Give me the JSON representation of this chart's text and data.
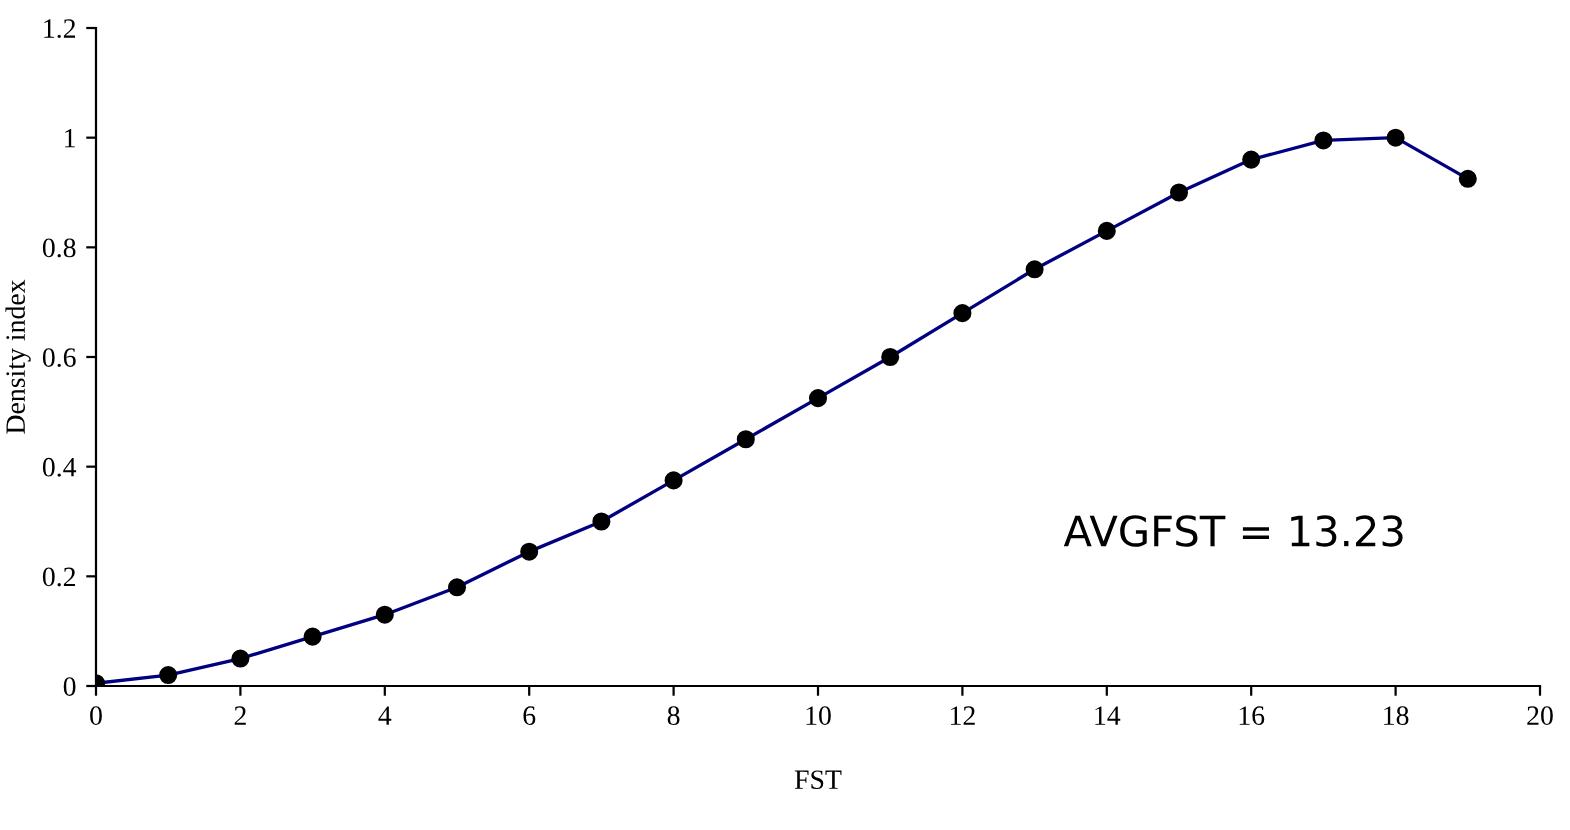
{
  "chart_data": {
    "type": "line",
    "xlabel": "FST",
    "ylabel": "Density index",
    "x": [
      0,
      1,
      2,
      3,
      4,
      5,
      6,
      7,
      8,
      9,
      10,
      11,
      12,
      13,
      14,
      15,
      16,
      17,
      18,
      19
    ],
    "series": [
      {
        "color": "#000080",
        "values": [
          0.005,
          0.02,
          0.05,
          0.09,
          0.13,
          0.18,
          0.245,
          0.3,
          0.375,
          0.45,
          0.525,
          0.6,
          0.68,
          0.76,
          0.83,
          0.9,
          0.96,
          0.995,
          1.0,
          0.925
        ]
      }
    ],
    "marker": "circle",
    "line_style": "solid",
    "xlim": [
      0,
      20
    ],
    "xticks": [
      0,
      2,
      4,
      6,
      8,
      10,
      12,
      14,
      16,
      18,
      20
    ],
    "ylim": [
      0,
      1.2
    ],
    "yticks": [
      0,
      0.2,
      0.4,
      0.6,
      0.8,
      1,
      1.2
    ],
    "grid": false,
    "legend": false,
    "annotations": [
      "AVGFST = 13.23"
    ]
  }
}
